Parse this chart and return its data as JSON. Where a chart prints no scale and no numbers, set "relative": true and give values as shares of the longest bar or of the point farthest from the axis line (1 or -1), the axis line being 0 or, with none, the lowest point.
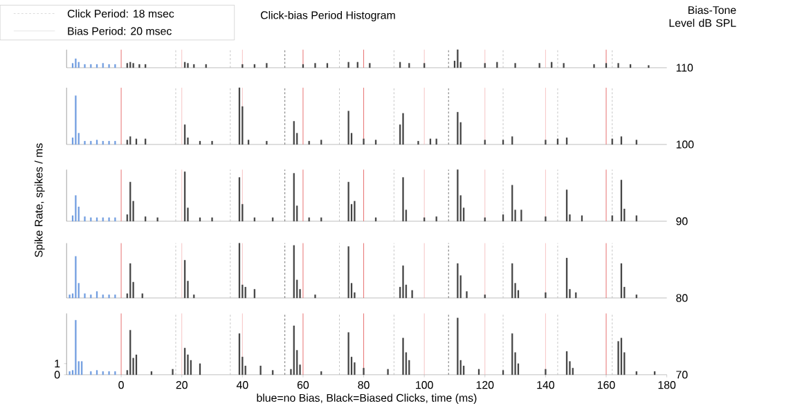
{
  "chart_data": [
    {
      "type": "bar",
      "title": "Click-bias Period Histogram",
      "annotations": [
        "Click Period: 18 msec",
        "Bias Period: 20 msec",
        "Bias-Tone Level dB SPL"
      ],
      "y2label": "110",
      "relative": true,
      "xlim": [
        -18,
        180
      ],
      "series": [
        {
          "color": "#6f9be0",
          "x": [
            -16,
            -15,
            -14,
            -12,
            -10,
            -8,
            -6,
            -4,
            -2
          ],
          "values": [
            0.25,
            0.5,
            0.31,
            0.19,
            0.19,
            0.19,
            0.25,
            0.19,
            0.19
          ]
        },
        {
          "color": "#404040",
          "x": [
            2,
            3,
            4,
            6,
            8,
            21,
            22,
            24,
            28,
            40,
            44,
            48,
            60,
            64,
            68,
            75,
            78,
            82,
            92,
            95,
            100,
            110,
            111,
            112,
            120,
            124,
            130,
            138,
            142,
            146,
            156,
            160,
            164,
            168,
            174
          ],
          "values": [
            0.25,
            0.31,
            0.25,
            0.19,
            0.19,
            0.31,
            0.25,
            0.19,
            0.19,
            0.19,
            0.19,
            0.25,
            0.19,
            0.25,
            0.25,
            0.31,
            0.31,
            0.25,
            0.31,
            0.25,
            0.25,
            0.38,
            1,
            0.31,
            0.25,
            0.31,
            0.25,
            0.25,
            0.31,
            0.25,
            0.19,
            0.25,
            0.25,
            0.19,
            0.13
          ]
        }
      ],
      "ref_lines": [
        {
          "axis": "x",
          "value": 0,
          "color": "#e04040",
          "line_style": "solid"
        },
        {
          "axis": "x",
          "value": 20,
          "color": "#f4b0b0",
          "line_style": "solid"
        },
        {
          "axis": "x",
          "value": 40,
          "color": "#f4b0b0",
          "line_style": "solid"
        },
        {
          "axis": "x",
          "value": 60,
          "color": "#e04040",
          "line_style": "solid"
        },
        {
          "axis": "x",
          "value": 80,
          "color": "#e04040",
          "line_style": "solid"
        },
        {
          "axis": "x",
          "value": 100,
          "color": "#f4b0b0",
          "line_style": "solid"
        },
        {
          "axis": "x",
          "value": 120,
          "color": "#f4b0b0",
          "line_style": "solid"
        },
        {
          "axis": "x",
          "value": 140,
          "color": "#f4b0b0",
          "line_style": "solid"
        },
        {
          "axis": "x",
          "value": 160,
          "color": "#e04040",
          "line_style": "solid"
        },
        {
          "axis": "x",
          "value": 18,
          "color": "#b0b0b0",
          "line_style": "dashed"
        },
        {
          "axis": "x",
          "value": 36,
          "color": "#b0b0b0",
          "line_style": "dashed"
        },
        {
          "axis": "x",
          "value": 54,
          "color": "#404040",
          "line_style": "dashed"
        },
        {
          "axis": "x",
          "value": 72,
          "color": "#b0b0b0",
          "line_style": "dashed"
        },
        {
          "axis": "x",
          "value": 90,
          "color": "#b0b0b0",
          "line_style": "dashed"
        },
        {
          "axis": "x",
          "value": 108,
          "color": "#404040",
          "line_style": "dashed"
        },
        {
          "axis": "x",
          "value": 126,
          "color": "#b0b0b0",
          "line_style": "dashed"
        },
        {
          "axis": "x",
          "value": 144,
          "color": "#b0b0b0",
          "line_style": "dashed"
        },
        {
          "axis": "x",
          "value": 162,
          "color": "#b0b0b0",
          "line_style": "dashed"
        }
      ]
    },
    {
      "type": "bar",
      "y2label": "100",
      "relative": true,
      "xlim": [
        -18,
        180
      ],
      "series": [
        {
          "color": "#6f9be0",
          "x": [
            -16,
            -15,
            -14,
            -12,
            -10,
            -8,
            -6,
            -4,
            -2
          ],
          "values": [
            0.12,
            0.86,
            0.2,
            0.06,
            0.06,
            0.08,
            0.06,
            0.06,
            0.06
          ]
        },
        {
          "color": "#404040",
          "x": [
            2,
            3,
            5,
            8,
            21,
            22,
            26,
            30,
            39,
            40,
            42,
            48,
            57,
            58,
            62,
            66,
            75,
            76,
            80,
            84,
            92,
            93,
            98,
            102,
            104,
            111,
            112,
            120,
            126,
            129,
            140,
            144,
            147,
            162,
            165,
            170
          ],
          "values": [
            0.08,
            0.14,
            0.1,
            0.1,
            0.35,
            0.12,
            0.06,
            0.06,
            1,
            0.67,
            0.08,
            0.06,
            0.41,
            0.2,
            0.06,
            0.08,
            0.59,
            0.2,
            0.1,
            0.08,
            0.35,
            0.55,
            0.06,
            0.1,
            0.1,
            0.57,
            0.39,
            0.08,
            0.08,
            0.14,
            0.08,
            0.1,
            0.12,
            0.1,
            0.14,
            0.08
          ]
        }
      ],
      "ref_lines": [
        {
          "axis": "x",
          "value": 0,
          "color": "#e04040",
          "line_style": "solid"
        },
        {
          "axis": "x",
          "value": 20,
          "color": "#f4b0b0",
          "line_style": "solid"
        },
        {
          "axis": "x",
          "value": 40,
          "color": "#f4b0b0",
          "line_style": "solid"
        },
        {
          "axis": "x",
          "value": 60,
          "color": "#e04040",
          "line_style": "solid"
        },
        {
          "axis": "x",
          "value": 80,
          "color": "#e04040",
          "line_style": "solid"
        },
        {
          "axis": "x",
          "value": 100,
          "color": "#f4b0b0",
          "line_style": "solid"
        },
        {
          "axis": "x",
          "value": 120,
          "color": "#f4b0b0",
          "line_style": "solid"
        },
        {
          "axis": "x",
          "value": 140,
          "color": "#f4b0b0",
          "line_style": "solid"
        },
        {
          "axis": "x",
          "value": 160,
          "color": "#e04040",
          "line_style": "solid"
        },
        {
          "axis": "x",
          "value": 18,
          "color": "#b0b0b0",
          "line_style": "dashed"
        },
        {
          "axis": "x",
          "value": 36,
          "color": "#b0b0b0",
          "line_style": "dashed"
        },
        {
          "axis": "x",
          "value": 54,
          "color": "#404040",
          "line_style": "dashed"
        },
        {
          "axis": "x",
          "value": 72,
          "color": "#b0b0b0",
          "line_style": "dashed"
        },
        {
          "axis": "x",
          "value": 90,
          "color": "#b0b0b0",
          "line_style": "dashed"
        },
        {
          "axis": "x",
          "value": 108,
          "color": "#404040",
          "line_style": "dashed"
        },
        {
          "axis": "x",
          "value": 126,
          "color": "#b0b0b0",
          "line_style": "dashed"
        },
        {
          "axis": "x",
          "value": 144,
          "color": "#b0b0b0",
          "line_style": "dashed"
        },
        {
          "axis": "x",
          "value": 162,
          "color": "#b0b0b0",
          "line_style": "dashed"
        }
      ]
    },
    {
      "type": "bar",
      "ylabel": "Spike Rate, spikes / ms",
      "y2label": "90",
      "relative": true,
      "xlim": [
        -18,
        180
      ],
      "series": [
        {
          "color": "#6f9be0",
          "x": [
            -16,
            -15,
            -14,
            -12,
            -10,
            -8,
            -6,
            -4,
            -2
          ],
          "values": [
            0.11,
            0.5,
            0.28,
            0.09,
            0.07,
            0.07,
            0.07,
            0.07,
            0.07
          ]
        },
        {
          "color": "#404040",
          "x": [
            2,
            3,
            4,
            8,
            12,
            21,
            22,
            26,
            30,
            39,
            40,
            44,
            50,
            57,
            58,
            62,
            66,
            75,
            76,
            77,
            84,
            93,
            94,
            100,
            104,
            111,
            112,
            113,
            120,
            126,
            129,
            130,
            132,
            140,
            147,
            148,
            152,
            162,
            165,
            166,
            170
          ],
          "values": [
            0.13,
            0.76,
            0.39,
            0.09,
            0.07,
            0.96,
            0.26,
            0.07,
            0.07,
            0.85,
            0.33,
            0.07,
            0.07,
            0.93,
            0.3,
            0.07,
            0.07,
            0.76,
            0.33,
            0.39,
            0.07,
            0.85,
            0.22,
            0.07,
            0.09,
            1,
            0.5,
            0.26,
            0.07,
            0.13,
            0.7,
            0.22,
            0.22,
            0.09,
            0.61,
            0.13,
            0.11,
            0.11,
            0.8,
            0.24,
            0.11
          ]
        }
      ],
      "ref_lines": [
        {
          "axis": "x",
          "value": 0,
          "color": "#e04040",
          "line_style": "solid"
        },
        {
          "axis": "x",
          "value": 20,
          "color": "#f4b0b0",
          "line_style": "solid"
        },
        {
          "axis": "x",
          "value": 40,
          "color": "#f4b0b0",
          "line_style": "solid"
        },
        {
          "axis": "x",
          "value": 60,
          "color": "#e04040",
          "line_style": "solid"
        },
        {
          "axis": "x",
          "value": 80,
          "color": "#e04040",
          "line_style": "solid"
        },
        {
          "axis": "x",
          "value": 100,
          "color": "#f4b0b0",
          "line_style": "solid"
        },
        {
          "axis": "x",
          "value": 120,
          "color": "#f4b0b0",
          "line_style": "solid"
        },
        {
          "axis": "x",
          "value": 140,
          "color": "#f4b0b0",
          "line_style": "solid"
        },
        {
          "axis": "x",
          "value": 160,
          "color": "#e04040",
          "line_style": "solid"
        },
        {
          "axis": "x",
          "value": 18,
          "color": "#b0b0b0",
          "line_style": "dashed"
        },
        {
          "axis": "x",
          "value": 36,
          "color": "#b0b0b0",
          "line_style": "dashed"
        },
        {
          "axis": "x",
          "value": 54,
          "color": "#404040",
          "line_style": "dashed"
        },
        {
          "axis": "x",
          "value": 72,
          "color": "#b0b0b0",
          "line_style": "dashed"
        },
        {
          "axis": "x",
          "value": 90,
          "color": "#b0b0b0",
          "line_style": "dashed"
        },
        {
          "axis": "x",
          "value": 108,
          "color": "#404040",
          "line_style": "dashed"
        },
        {
          "axis": "x",
          "value": 126,
          "color": "#b0b0b0",
          "line_style": "dashed"
        },
        {
          "axis": "x",
          "value": 144,
          "color": "#b0b0b0",
          "line_style": "dashed"
        },
        {
          "axis": "x",
          "value": 162,
          "color": "#b0b0b0",
          "line_style": "dashed"
        }
      ]
    },
    {
      "type": "bar",
      "y2label": "80",
      "relative": true,
      "xlim": [
        -18,
        180
      ],
      "series": [
        {
          "color": "#6f9be0",
          "x": [
            -17,
            -16,
            -15,
            -14,
            -12,
            -10,
            -8,
            -6,
            -4,
            -2
          ],
          "values": [
            0.06,
            0.08,
            0.76,
            0.27,
            0.08,
            0.06,
            0.12,
            0.06,
            0.06,
            0.06
          ]
        },
        {
          "color": "#404040",
          "x": [
            2,
            3,
            4,
            7,
            21,
            22,
            24,
            39,
            40,
            41,
            44,
            57,
            58,
            59,
            64,
            75,
            76,
            77,
            92,
            93,
            94,
            96,
            111,
            112,
            114,
            120,
            129,
            130,
            131,
            140,
            147,
            148,
            150,
            165,
            166,
            170
          ],
          "values": [
            0.08,
            0.63,
            0.29,
            0.08,
            0.69,
            0.31,
            0.06,
            1,
            0.24,
            0.2,
            0.16,
            0.96,
            0.33,
            0.16,
            0.06,
            0.94,
            0.27,
            0.1,
            0.2,
            0.59,
            0.24,
            0.14,
            0.63,
            0.41,
            0.12,
            0.06,
            0.63,
            0.27,
            0.14,
            0.1,
            0.73,
            0.16,
            0.1,
            0.63,
            0.2,
            0.06
          ]
        }
      ],
      "ref_lines": [
        {
          "axis": "x",
          "value": 0,
          "color": "#e04040",
          "line_style": "solid"
        },
        {
          "axis": "x",
          "value": 20,
          "color": "#f4b0b0",
          "line_style": "solid"
        },
        {
          "axis": "x",
          "value": 40,
          "color": "#f4b0b0",
          "line_style": "solid"
        },
        {
          "axis": "x",
          "value": 60,
          "color": "#e04040",
          "line_style": "solid"
        },
        {
          "axis": "x",
          "value": 80,
          "color": "#e04040",
          "line_style": "solid"
        },
        {
          "axis": "x",
          "value": 100,
          "color": "#f4b0b0",
          "line_style": "solid"
        },
        {
          "axis": "x",
          "value": 120,
          "color": "#f4b0b0",
          "line_style": "solid"
        },
        {
          "axis": "x",
          "value": 140,
          "color": "#f4b0b0",
          "line_style": "solid"
        },
        {
          "axis": "x",
          "value": 160,
          "color": "#e04040",
          "line_style": "solid"
        },
        {
          "axis": "x",
          "value": 18,
          "color": "#b0b0b0",
          "line_style": "dashed"
        },
        {
          "axis": "x",
          "value": 36,
          "color": "#b0b0b0",
          "line_style": "dashed"
        },
        {
          "axis": "x",
          "value": 54,
          "color": "#404040",
          "line_style": "dashed"
        },
        {
          "axis": "x",
          "value": 72,
          "color": "#b0b0b0",
          "line_style": "dashed"
        },
        {
          "axis": "x",
          "value": 90,
          "color": "#b0b0b0",
          "line_style": "dashed"
        },
        {
          "axis": "x",
          "value": 108,
          "color": "#404040",
          "line_style": "dashed"
        },
        {
          "axis": "x",
          "value": 126,
          "color": "#b0b0b0",
          "line_style": "dashed"
        },
        {
          "axis": "x",
          "value": 144,
          "color": "#b0b0b0",
          "line_style": "dashed"
        },
        {
          "axis": "x",
          "value": 162,
          "color": "#b0b0b0",
          "line_style": "dashed"
        }
      ]
    },
    {
      "type": "bar",
      "xlabel": "blue=no Bias, Black=Biased Clicks, time (ms)",
      "y2label": "70",
      "xlim": [
        -18,
        180
      ],
      "ylim": [
        0,
        5.5
      ],
      "xticks": [
        0,
        20,
        40,
        60,
        80,
        100,
        120,
        140,
        160,
        180
      ],
      "yticks": [
        0,
        1
      ],
      "series": [
        {
          "color": "#6f9be0",
          "x": [
            -17,
            -16,
            -15,
            -14,
            -13,
            -10,
            -8,
            -6,
            -4,
            -2
          ],
          "values": [
            0.3,
            0.4,
            4.9,
            1.2,
            1.2,
            0.3,
            0.4,
            0.3,
            0.3,
            0.3
          ]
        },
        {
          "color": "#404040",
          "x": [
            2,
            3,
            4,
            5,
            10,
            17,
            21,
            22,
            23,
            26,
            39,
            40,
            41,
            46,
            50,
            56,
            57,
            58,
            59,
            66,
            75,
            76,
            77,
            80,
            88,
            93,
            94,
            95,
            111,
            112,
            113,
            118,
            126,
            129,
            130,
            131,
            140,
            147,
            148,
            149,
            164,
            165,
            166,
            170,
            176
          ],
          "values": [
            0.4,
            4.0,
            1.5,
            1.8,
            0.3,
            0.5,
            2.4,
            1.8,
            1.3,
            1.0,
            3.7,
            1.6,
            0.8,
            0.8,
            0.4,
            0.5,
            4.4,
            2.2,
            0.9,
            0.3,
            3.8,
            1.6,
            1.1,
            0.6,
            0.5,
            3.3,
            2.0,
            1.3,
            5.1,
            1.3,
            0.8,
            0.5,
            0.4,
            3.7,
            2.0,
            1.0,
            0.5,
            2.1,
            1.2,
            0.6,
            3.0,
            3.3,
            2.0,
            0.3,
            0.3
          ]
        }
      ],
      "ref_lines": [
        {
          "axis": "x",
          "value": 0,
          "color": "#e04040",
          "line_style": "solid"
        },
        {
          "axis": "x",
          "value": 20,
          "color": "#f4b0b0",
          "line_style": "solid"
        },
        {
          "axis": "x",
          "value": 40,
          "color": "#f4b0b0",
          "line_style": "solid"
        },
        {
          "axis": "x",
          "value": 60,
          "color": "#e04040",
          "line_style": "solid"
        },
        {
          "axis": "x",
          "value": 80,
          "color": "#e04040",
          "line_style": "solid"
        },
        {
          "axis": "x",
          "value": 100,
          "color": "#f4b0b0",
          "line_style": "solid"
        },
        {
          "axis": "x",
          "value": 120,
          "color": "#f4b0b0",
          "line_style": "solid"
        },
        {
          "axis": "x",
          "value": 140,
          "color": "#f4b0b0",
          "line_style": "solid"
        },
        {
          "axis": "x",
          "value": 160,
          "color": "#e04040",
          "line_style": "solid"
        },
        {
          "axis": "x",
          "value": 18,
          "color": "#b0b0b0",
          "line_style": "dashed"
        },
        {
          "axis": "x",
          "value": 36,
          "color": "#b0b0b0",
          "line_style": "dashed"
        },
        {
          "axis": "x",
          "value": 54,
          "color": "#404040",
          "line_style": "dashed"
        },
        {
          "axis": "x",
          "value": 72,
          "color": "#b0b0b0",
          "line_style": "dashed"
        },
        {
          "axis": "x",
          "value": 90,
          "color": "#b0b0b0",
          "line_style": "dashed"
        },
        {
          "axis": "x",
          "value": 108,
          "color": "#404040",
          "line_style": "dashed"
        },
        {
          "axis": "x",
          "value": 126,
          "color": "#b0b0b0",
          "line_style": "dashed"
        },
        {
          "axis": "x",
          "value": 144,
          "color": "#b0b0b0",
          "line_style": "dashed"
        },
        {
          "axis": "x",
          "value": 162,
          "color": "#b0b0b0",
          "line_style": "dashed"
        }
      ]
    }
  ]
}
